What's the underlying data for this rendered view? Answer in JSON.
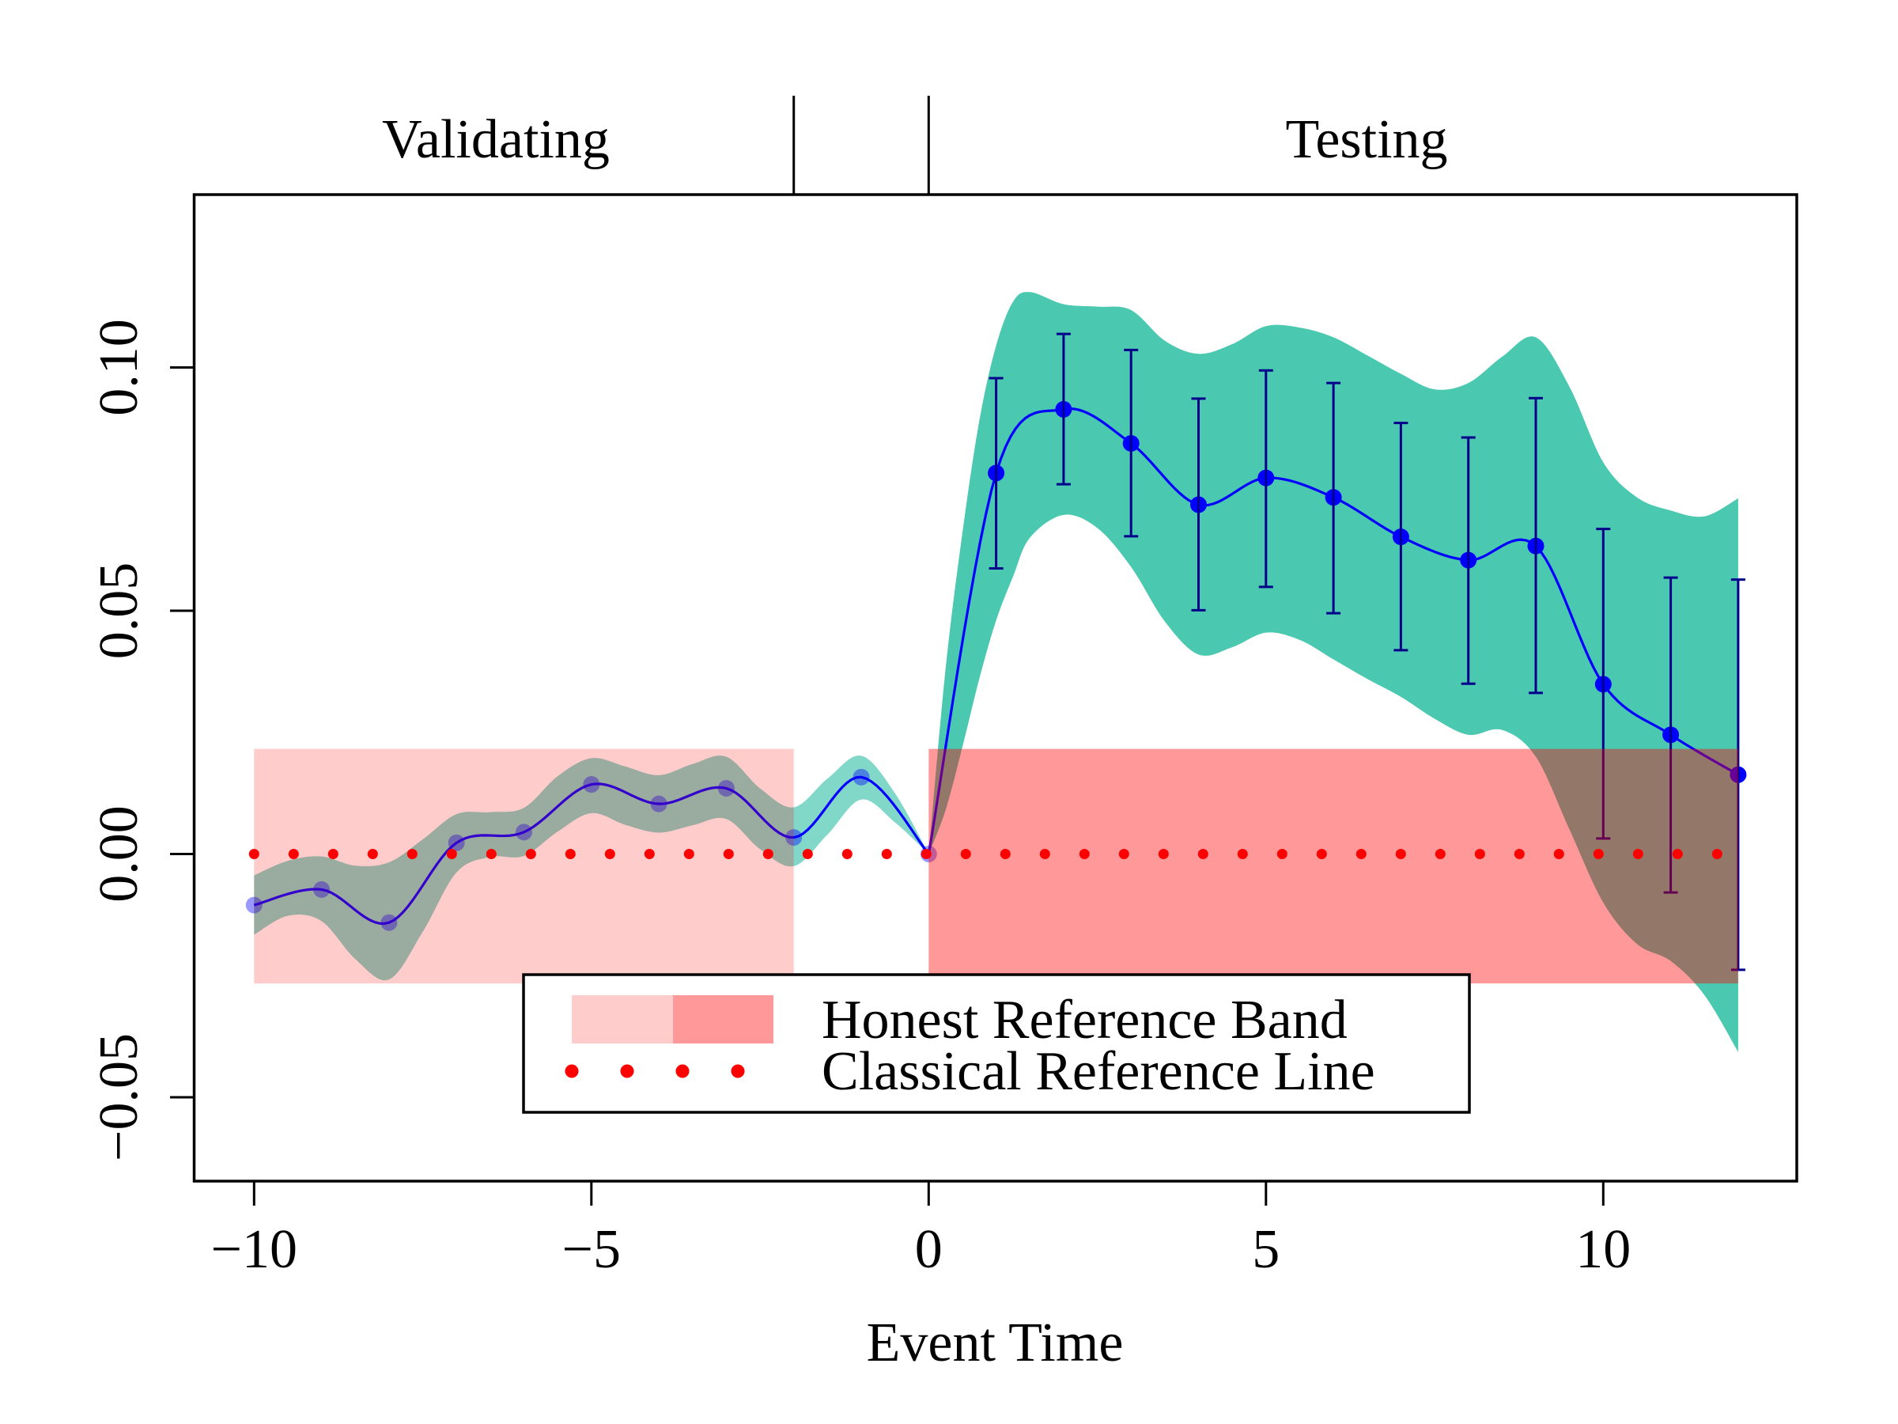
{
  "chart_data": {
    "type": "line",
    "title": "",
    "xlabel": "Event Time",
    "ylabel": "",
    "xlim": [
      -10.88,
      12.88
    ],
    "ylim": [
      -0.0672,
      0.1355
    ],
    "grid": false,
    "xticks": [
      -10,
      -5,
      0,
      5,
      10
    ],
    "xtick_labels": [
      "−10",
      "−5",
      "0",
      "5",
      "10"
    ],
    "yticks": [
      0.1,
      0.05,
      0.0,
      -0.05
    ],
    "ytick_labels": [
      "0.10",
      "0.05",
      "0.00",
      "−0.05"
    ],
    "periods": [
      {
        "label": "Validating",
        "start": -10,
        "end": -2
      },
      {
        "label": "Testing",
        "start": 0,
        "end": 12
      }
    ],
    "period_boundaries": [
      -2,
      0
    ],
    "estimates": {
      "x": [
        -10,
        -9,
        -8,
        -7,
        -6,
        -5,
        -4,
        -3,
        -2,
        -1,
        0,
        1,
        2,
        3,
        4,
        5,
        6,
        7,
        8,
        9,
        10,
        11,
        12
      ],
      "y": [
        -0.0105,
        -0.0073,
        -0.0141,
        0.0023,
        0.0045,
        0.0143,
        0.0103,
        0.0135,
        0.0034,
        0.0158,
        0.0,
        0.0783,
        0.0914,
        0.0844,
        0.0718,
        0.0773,
        0.0733,
        0.0652,
        0.0604,
        0.0633,
        0.0349,
        0.0245,
        0.0163
      ]
    },
    "error_bars": {
      "x": [
        1,
        2,
        3,
        4,
        5,
        6,
        7,
        8,
        9,
        10,
        11,
        12
      ],
      "upper": [
        0.0978,
        0.1069,
        0.1036,
        0.0936,
        0.0994,
        0.0968,
        0.0886,
        0.0856,
        0.0937,
        0.0668,
        0.0568,
        0.0564
      ],
      "lower": [
        0.0587,
        0.076,
        0.0653,
        0.0501,
        0.0549,
        0.0495,
        0.0419,
        0.035,
        0.0331,
        0.0032,
        -0.0079,
        -0.0238
      ]
    },
    "confidence_band": {
      "pre": {
        "x": [
          -10,
          -9.5,
          -9,
          -8.5,
          -8,
          -7.5,
          -7,
          -6.5,
          -6,
          -5.5,
          -5,
          -4.5,
          -4,
          -3.5,
          -3,
          -2.5,
          -2,
          -1.5,
          -1,
          -0.5,
          0
        ],
        "upper": [
          -0.0044,
          -0.0014,
          -0.0005,
          -0.0024,
          -0.0017,
          0.003,
          0.0082,
          0.0086,
          0.0095,
          0.016,
          0.0197,
          0.018,
          0.0162,
          0.0185,
          0.02,
          0.0135,
          0.0096,
          0.0155,
          0.0202,
          0.0125,
          0.0
        ],
        "lower": [
          -0.0166,
          -0.0127,
          -0.0138,
          -0.0216,
          -0.0258,
          -0.016,
          -0.0038,
          -0.0006,
          -0.0004,
          0.0046,
          0.0084,
          0.006,
          0.0044,
          0.0059,
          0.0072,
          0.001,
          -0.0025,
          0.004,
          0.0112,
          0.0065,
          0.0
        ]
      },
      "post": {
        "x": [
          0,
          0.25,
          0.5,
          0.75,
          1,
          1.25,
          1.5,
          2,
          2.5,
          3,
          3.5,
          4,
          4.5,
          5,
          5.5,
          6,
          6.5,
          7,
          7.5,
          8,
          8.5,
          9,
          9.5,
          10,
          10.5,
          11,
          11.5,
          12
        ],
        "upper": [
          0.0,
          0.038,
          0.066,
          0.089,
          0.1045,
          0.1135,
          0.1155,
          0.113,
          0.1125,
          0.1118,
          0.1055,
          0.1028,
          0.1048,
          0.1085,
          0.1082,
          0.1062,
          0.1025,
          0.0987,
          0.0955,
          0.0968,
          0.1022,
          0.1062,
          0.096,
          0.0805,
          0.0733,
          0.0706,
          0.0694,
          0.0731
        ],
        "lower": [
          0.0,
          0.009,
          0.022,
          0.036,
          0.048,
          0.057,
          0.065,
          0.0697,
          0.067,
          0.059,
          0.0478,
          0.041,
          0.0425,
          0.0455,
          0.044,
          0.04,
          0.036,
          0.0323,
          0.0278,
          0.0245,
          0.0255,
          0.02,
          0.005,
          -0.01,
          -0.0185,
          -0.022,
          -0.029,
          -0.0407
        ]
      }
    },
    "honest_reference_band": {
      "lower": -0.0266,
      "upper": 0.0216,
      "segments": [
        {
          "start": -10,
          "end": -2,
          "opacity": 0.2
        },
        {
          "start": 0,
          "end": 12,
          "opacity": 0.4
        }
      ]
    },
    "classical_reference_line": {
      "y": 0.0,
      "x_range": [
        -10,
        12
      ]
    },
    "legend": [
      {
        "label": "Honest Reference Band",
        "type": "band"
      },
      {
        "label": "Classical Reference Line",
        "type": "dotted-line"
      }
    ],
    "legend_position": "bottom-center"
  },
  "colors": {
    "background": "#FFFFFF",
    "axis": "#000000",
    "confidence_band": "#4BC8B0",
    "estimate_line": "#0000FF",
    "estimate_point": "#0000FF",
    "error_bar": "#00008B",
    "honest_band": "#FF0000",
    "classical_line": "#FF0000"
  },
  "styles": {
    "pre_band_opacity": 0.7,
    "pre_point_opacity": 0.4
  }
}
